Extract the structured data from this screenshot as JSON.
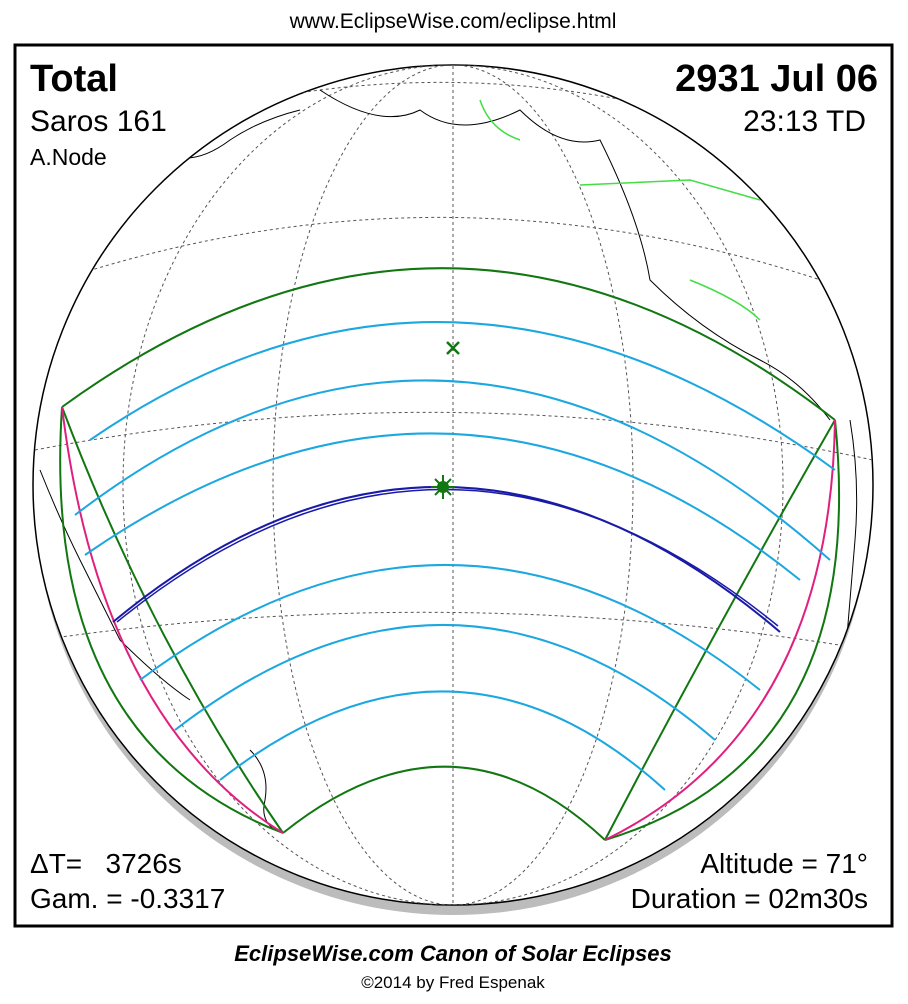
{
  "header": {
    "url": "www.EclipseWise.com/eclipse.html"
  },
  "eclipse": {
    "type": "Total",
    "date": "2931 Jul 06",
    "saros": "Saros 161",
    "time": "23:13 TD",
    "node": "A.Node",
    "delta_t": "ΔT=   3726s",
    "gamma": "Gam. = -0.3317",
    "altitude": "Altitude = 71°",
    "duration": "Duration = 02m30s"
  },
  "footer": {
    "title": "EclipseWise.com Canon of Solar Eclipses",
    "credit": "©2014 by Fred Espenak"
  }
}
